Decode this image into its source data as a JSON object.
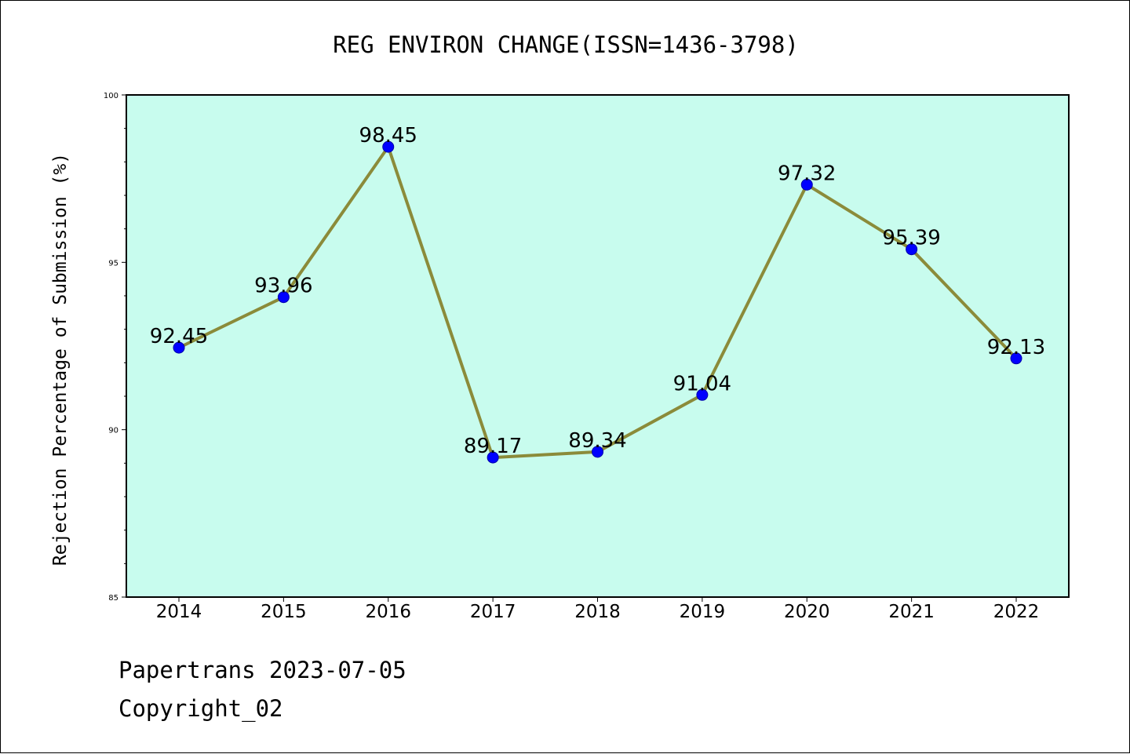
{
  "chart_data": {
    "type": "line",
    "title": "REG ENVIRON CHANGE(ISSN=1436-3798)",
    "xlabel": "",
    "ylabel": "Rejection Percentage of Submission (%)",
    "categories": [
      "2014",
      "2015",
      "2016",
      "2017",
      "2018",
      "2019",
      "2020",
      "2021",
      "2022"
    ],
    "series": [
      {
        "values": [
          92.45,
          93.96,
          98.45,
          89.17,
          89.34,
          91.04,
          97.32,
          95.39,
          92.13
        ],
        "labels": [
          "92.45",
          "93.96",
          "98.45",
          "89.17",
          "89.34",
          "91.04",
          "97.32",
          "95.39",
          "92.13"
        ]
      }
    ],
    "ylim": [
      85,
      100
    ],
    "yticks": [
      "85",
      "90",
      "95",
      "100"
    ],
    "grid": false,
    "colors": {
      "plot_background": "#c8fcee",
      "line": "#8b8b3a",
      "marker": "#0000ff"
    }
  },
  "footer": {
    "line1": "Papertrans 2023-07-05",
    "line2": "Copyright_02"
  }
}
